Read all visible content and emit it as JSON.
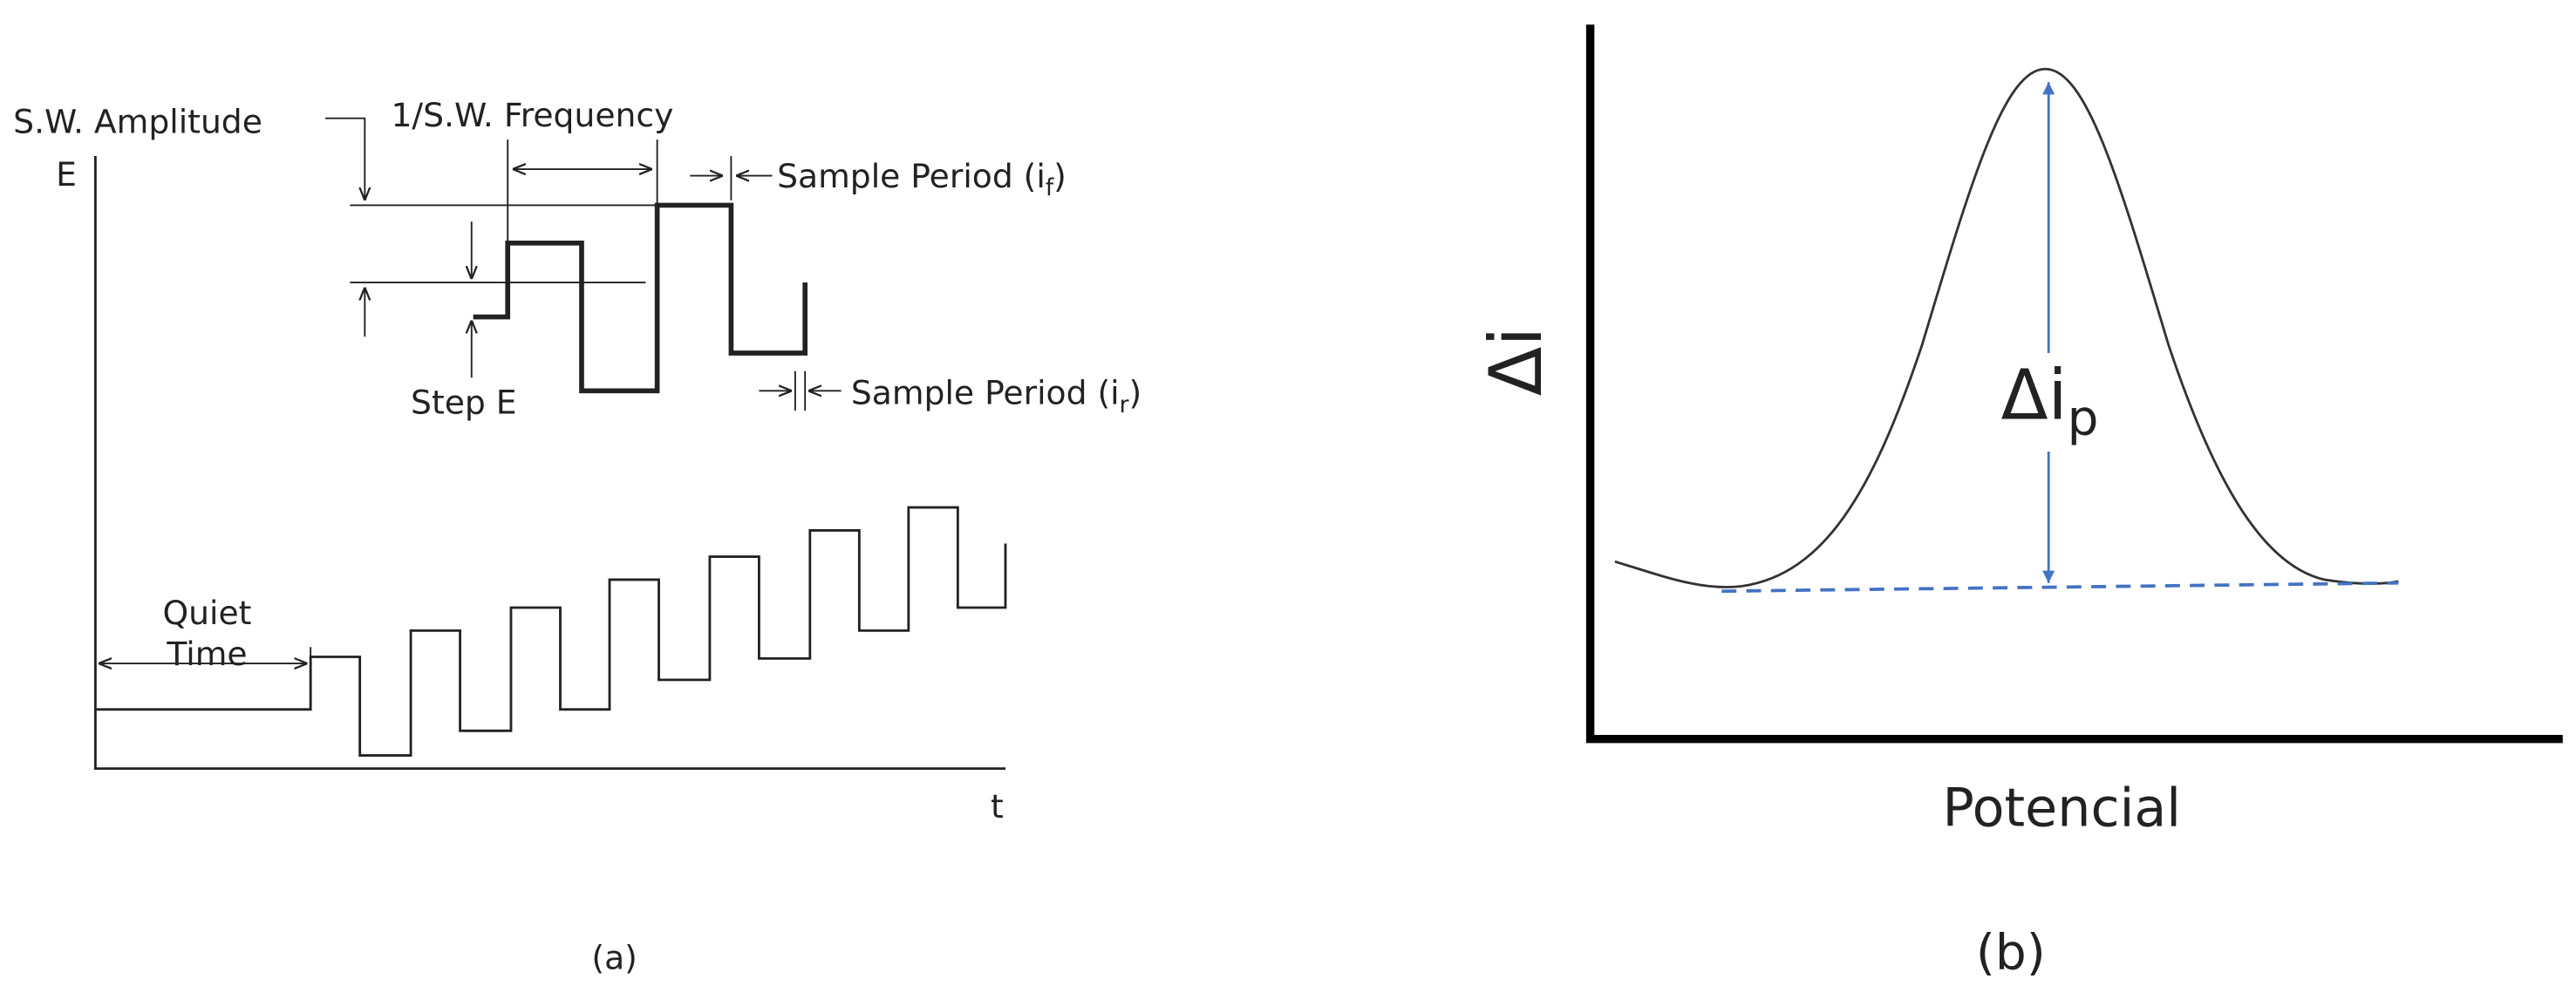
{
  "panel_a": {
    "amplitude_label": "S.W. Amplitude",
    "frequency_label": "1/S.W. Frequency",
    "sample_forward": {
      "text": "Sample Period (i",
      "sub": "f",
      "end": ")"
    },
    "sample_reverse": {
      "text": "Sample Period (i",
      "sub": "r",
      "end": ")"
    },
    "step_label": "Step E",
    "y_label": "E",
    "x_label": "t",
    "quiet_time": [
      "Quiet",
      "Time"
    ],
    "caption": "(a)"
  },
  "panel_b": {
    "y_label": "Δi",
    "peak_label": {
      "text": "Δi",
      "sub": "p"
    },
    "x_label": "Potencial",
    "caption": "(b)"
  }
}
